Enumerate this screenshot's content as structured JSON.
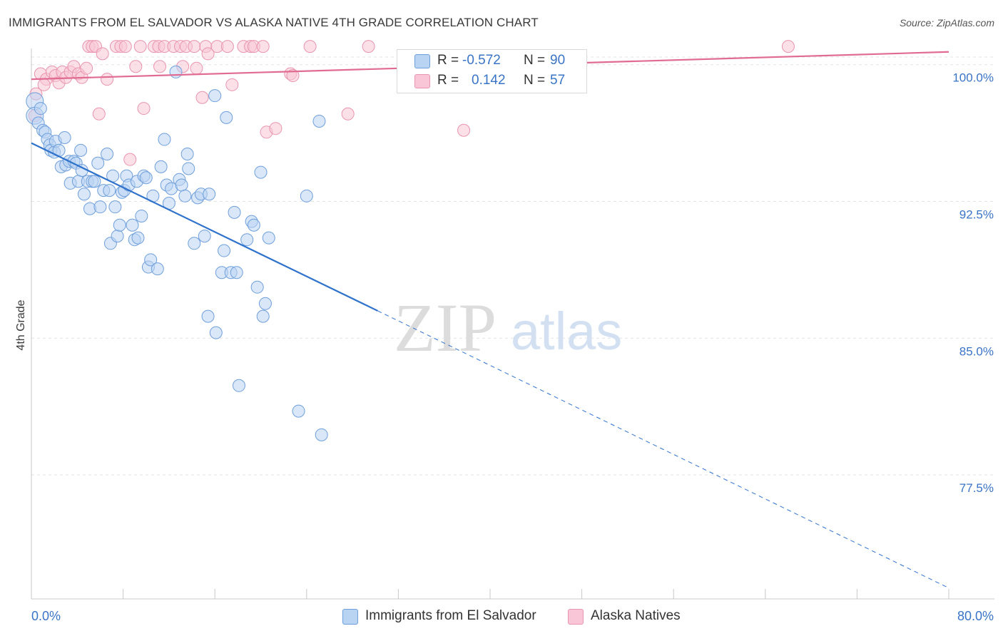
{
  "title": "IMMIGRANTS FROM EL SALVADOR VS ALASKA NATIVE 4TH GRADE CORRELATION CHART",
  "source": "Source: ZipAtlas.com",
  "watermark": {
    "zip": "ZIP",
    "atlas": "atlas"
  },
  "colors": {
    "blue_fill": "#b9d3f2",
    "blue_stroke": "#6f9fdb",
    "blue_line": "#2f72cc",
    "pink_fill": "#f8c6d6",
    "pink_stroke": "#e995b0",
    "pink_line": "#e06b93",
    "axis_text": "#3a74c6",
    "grid": "#e3e3e3"
  },
  "legend_top": {
    "rows": [
      {
        "r_label": "R =",
        "r_value": "-0.572",
        "n_label": "N =",
        "n_value": "90",
        "series": "blue"
      },
      {
        "r_label": "R =",
        "r_value": "0.142",
        "n_label": "N =",
        "n_value": "57",
        "series": "pink"
      }
    ]
  },
  "legend_bottom": [
    {
      "label": "Immigrants from El Salvador",
      "series": "blue"
    },
    {
      "label": "Alaska Natives",
      "series": "pink"
    }
  ],
  "chart_data": {
    "type": "scatter",
    "title": "IMMIGRANTS FROM EL SALVADOR VS ALASKA NATIVE 4TH GRADE CORRELATION CHART",
    "xlabel": "",
    "ylabel": "4th Grade",
    "xlim": [
      0,
      80
    ],
    "ylim": [
      70.7,
      101.2
    ],
    "x_tick_labels": [
      "0.0%",
      "80.0%"
    ],
    "y_ticks": [
      100.0,
      92.5,
      85.0,
      77.5
    ],
    "y_tick_labels": [
      "100.0%",
      "92.5%",
      "85.0%",
      "77.5%"
    ],
    "grid": true,
    "legend_position": "top-center",
    "series": [
      {
        "name": "Immigrants from El Salvador",
        "color": "blue",
        "trend": {
          "x0": 0,
          "y0": 95.7,
          "x1": 30.2,
          "y1": 86.5,
          "dash_to_x": 80,
          "dash_to_y": 71.3
        },
        "points": [
          [
            0.3,
            98.0
          ],
          [
            0.3,
            97.2
          ],
          [
            0.6,
            96.8
          ],
          [
            1.0,
            96.4
          ],
          [
            1.2,
            96.3
          ],
          [
            1.4,
            95.9
          ],
          [
            1.6,
            95.6
          ],
          [
            1.7,
            95.3
          ],
          [
            2.0,
            95.2
          ],
          [
            2.1,
            95.8
          ],
          [
            2.4,
            95.3
          ],
          [
            2.6,
            94.4
          ],
          [
            2.9,
            96.0
          ],
          [
            3.0,
            94.5
          ],
          [
            3.3,
            94.7
          ],
          [
            3.4,
            93.5
          ],
          [
            3.7,
            94.7
          ],
          [
            3.9,
            94.6
          ],
          [
            4.1,
            93.6
          ],
          [
            4.3,
            95.3
          ],
          [
            4.4,
            94.2
          ],
          [
            4.6,
            92.9
          ],
          [
            4.9,
            93.6
          ],
          [
            5.1,
            92.1
          ],
          [
            5.3,
            93.6
          ],
          [
            5.5,
            93.6
          ],
          [
            5.8,
            94.6
          ],
          [
            6.0,
            92.2
          ],
          [
            6.3,
            93.1
          ],
          [
            6.6,
            95.1
          ],
          [
            6.8,
            93.1
          ],
          [
            6.9,
            90.2
          ],
          [
            7.1,
            93.9
          ],
          [
            7.3,
            92.2
          ],
          [
            7.5,
            90.6
          ],
          [
            7.7,
            91.2
          ],
          [
            7.9,
            93.0
          ],
          [
            8.1,
            93.1
          ],
          [
            8.3,
            93.9
          ],
          [
            8.5,
            93.4
          ],
          [
            8.8,
            91.2
          ],
          [
            9.0,
            90.4
          ],
          [
            9.2,
            93.6
          ],
          [
            9.3,
            90.5
          ],
          [
            9.6,
            91.7
          ],
          [
            9.8,
            93.9
          ],
          [
            10.0,
            93.8
          ],
          [
            10.2,
            88.9
          ],
          [
            10.4,
            89.3
          ],
          [
            10.6,
            92.8
          ],
          [
            11.0,
            88.8
          ],
          [
            11.3,
            94.4
          ],
          [
            11.6,
            95.9
          ],
          [
            11.8,
            93.4
          ],
          [
            12.0,
            92.4
          ],
          [
            12.2,
            93.2
          ],
          [
            12.6,
            99.6
          ],
          [
            12.9,
            93.7
          ],
          [
            13.1,
            93.4
          ],
          [
            13.4,
            92.8
          ],
          [
            13.6,
            95.1
          ],
          [
            13.7,
            94.3
          ],
          [
            14.2,
            90.2
          ],
          [
            14.5,
            92.7
          ],
          [
            14.8,
            92.9
          ],
          [
            15.1,
            90.6
          ],
          [
            15.4,
            86.2
          ],
          [
            15.5,
            92.9
          ],
          [
            16.0,
            98.3
          ],
          [
            16.1,
            85.3
          ],
          [
            16.6,
            88.6
          ],
          [
            16.8,
            89.8
          ],
          [
            17.0,
            97.1
          ],
          [
            17.4,
            88.6
          ],
          [
            17.7,
            91.9
          ],
          [
            17.9,
            88.6
          ],
          [
            18.1,
            82.4
          ],
          [
            18.8,
            90.4
          ],
          [
            19.2,
            91.4
          ],
          [
            19.4,
            91.2
          ],
          [
            19.7,
            87.8
          ],
          [
            20.0,
            94.1
          ],
          [
            20.2,
            86.2
          ],
          [
            20.4,
            86.9
          ],
          [
            20.7,
            90.5
          ],
          [
            23.3,
            81.0
          ],
          [
            24.0,
            92.8
          ],
          [
            25.3,
            79.7
          ],
          [
            25.1,
            96.9
          ],
          [
            0.8,
            97.6
          ]
        ]
      },
      {
        "name": "Alaska Natives",
        "color": "pink",
        "trend": {
          "x0": 0,
          "y0": 99.2,
          "x1": 80,
          "y1": 100.7
        },
        "points": [
          [
            0.4,
            98.4
          ],
          [
            0.8,
            99.5
          ],
          [
            1.3,
            99.2
          ],
          [
            1.8,
            99.6
          ],
          [
            2.1,
            99.4
          ],
          [
            2.4,
            99.0
          ],
          [
            2.7,
            99.6
          ],
          [
            3.0,
            99.3
          ],
          [
            3.4,
            99.6
          ],
          [
            3.7,
            99.9
          ],
          [
            4.1,
            99.5
          ],
          [
            4.4,
            99.3
          ],
          [
            4.8,
            99.8
          ],
          [
            5.0,
            101.0
          ],
          [
            5.3,
            101.0
          ],
          [
            5.6,
            101.0
          ],
          [
            5.9,
            97.3
          ],
          [
            6.2,
            100.6
          ],
          [
            6.6,
            99.2
          ],
          [
            7.4,
            101.0
          ],
          [
            7.8,
            101.0
          ],
          [
            8.2,
            101.0
          ],
          [
            8.6,
            94.8
          ],
          [
            9.1,
            99.9
          ],
          [
            9.5,
            101.0
          ],
          [
            9.8,
            97.6
          ],
          [
            10.7,
            101.0
          ],
          [
            11.1,
            101.0
          ],
          [
            11.2,
            99.9
          ],
          [
            11.6,
            101.0
          ],
          [
            12.4,
            101.0
          ],
          [
            13.0,
            101.0
          ],
          [
            13.2,
            99.9
          ],
          [
            13.5,
            101.0
          ],
          [
            14.2,
            101.0
          ],
          [
            14.4,
            99.8
          ],
          [
            14.9,
            98.2
          ],
          [
            15.2,
            101.0
          ],
          [
            15.4,
            100.6
          ],
          [
            16.2,
            101.0
          ],
          [
            17.1,
            101.0
          ],
          [
            17.5,
            98.9
          ],
          [
            18.5,
            101.0
          ],
          [
            19.1,
            101.0
          ],
          [
            19.4,
            101.0
          ],
          [
            20.2,
            101.0
          ],
          [
            20.5,
            96.3
          ],
          [
            21.3,
            96.5
          ],
          [
            22.6,
            99.5
          ],
          [
            22.8,
            99.4
          ],
          [
            24.3,
            101.0
          ],
          [
            27.6,
            97.3
          ],
          [
            29.4,
            101.0
          ],
          [
            37.7,
            96.4
          ],
          [
            66.0,
            101.0
          ],
          [
            0.3,
            97.2
          ],
          [
            1.1,
            98.9
          ]
        ]
      }
    ]
  }
}
